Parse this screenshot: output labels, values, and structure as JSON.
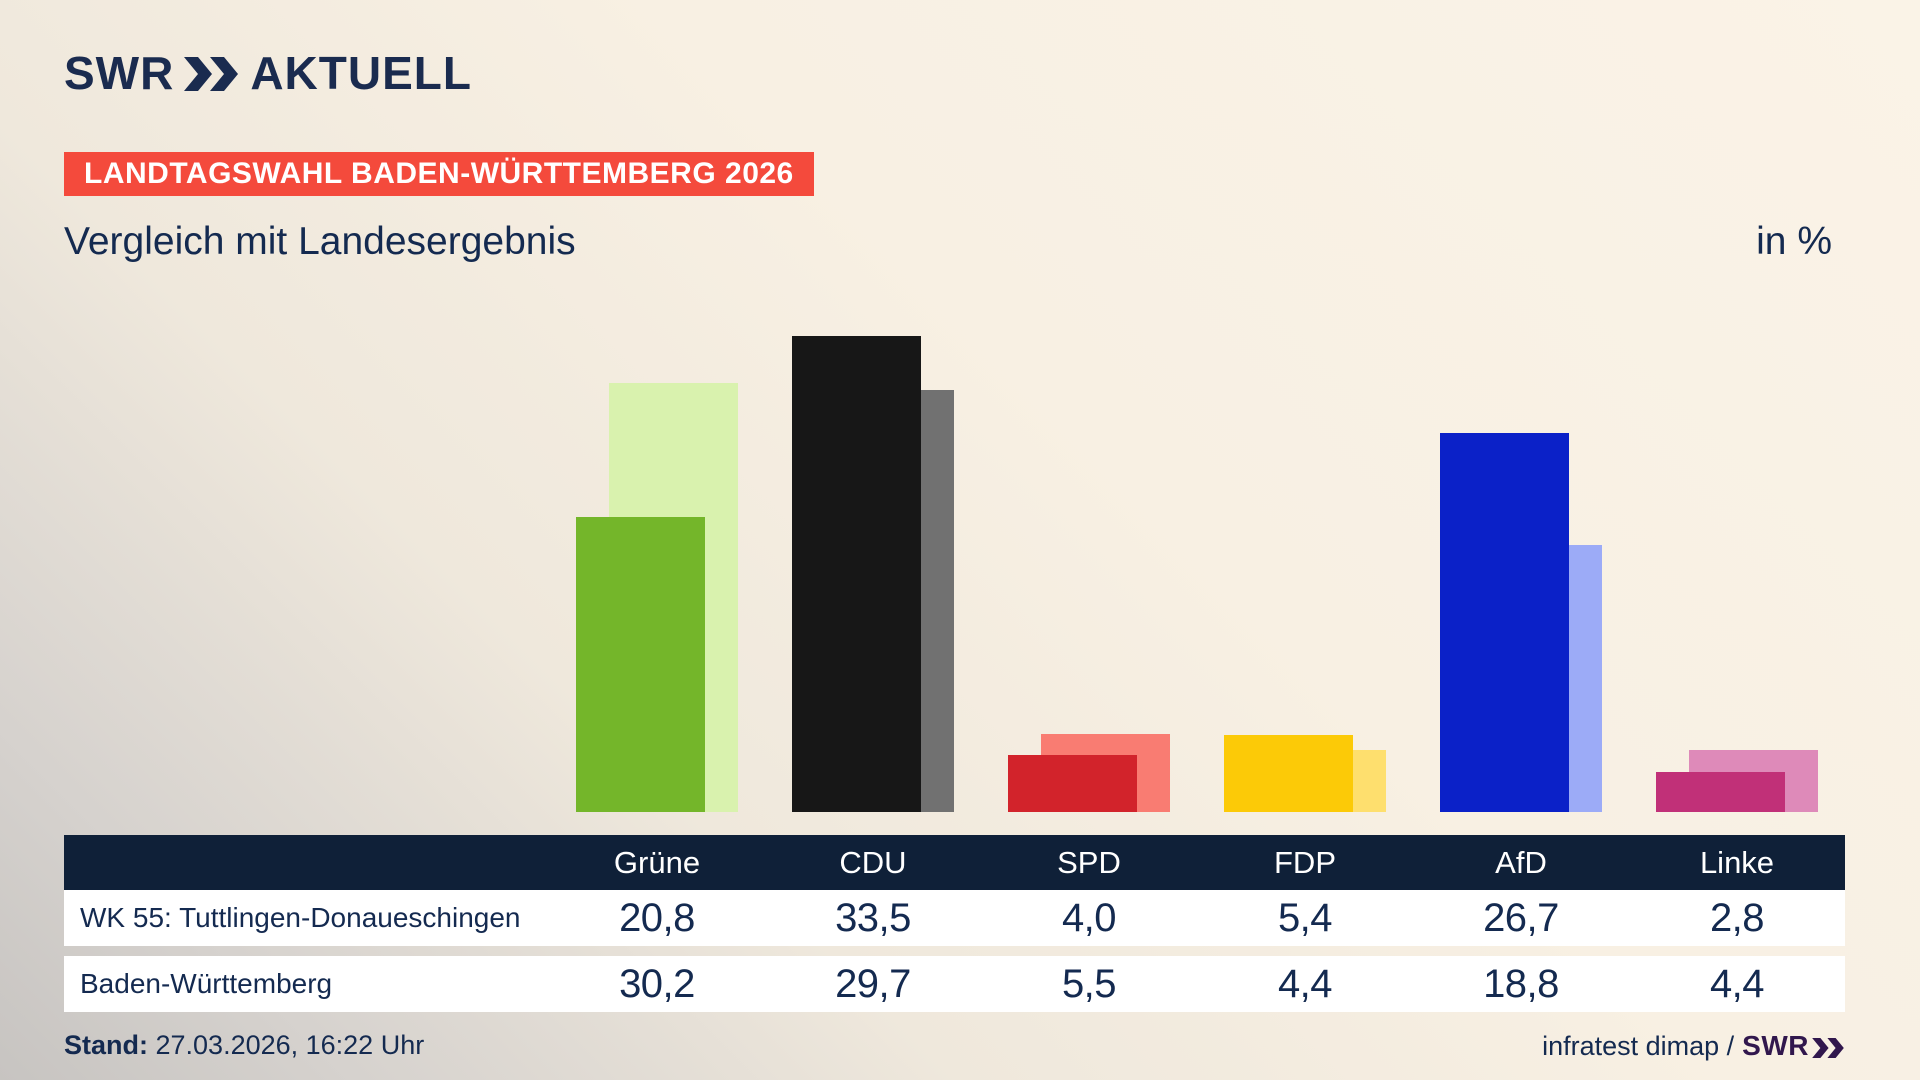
{
  "logo": {
    "swr": "SWR",
    "suffix": "AKTUELL",
    "chevron_icon": "double-chevron-right"
  },
  "badge": {
    "label": "LANDTAGSWAHL BADEN-WÜRTTEMBERG 2026",
    "bg_color": "#f44a3c"
  },
  "header": {
    "title": "Vergleich mit Landesergebnis",
    "unit": "in %"
  },
  "chart_data": {
    "type": "bar",
    "categories": [
      "Grüne",
      "CDU",
      "SPD",
      "FDP",
      "AfD",
      "Linke"
    ],
    "series": [
      {
        "name": "WK 55: Tuttlingen-Donaueschingen",
        "role": "constituency-front-bars",
        "values": [
          20.8,
          33.5,
          4.0,
          5.4,
          26.7,
          2.8
        ],
        "colors": [
          "#74b62a",
          "#171717",
          "#d2232b",
          "#fcca07",
          "#0b21c8",
          "#c13078"
        ]
      },
      {
        "name": "Baden-Württemberg",
        "role": "state-back-bars",
        "values": [
          30.2,
          29.7,
          5.5,
          4.4,
          18.8,
          4.4
        ],
        "colors": [
          "#d9f2ae",
          "#717171",
          "#f97c72",
          "#fedf6e",
          "#9cabf7",
          "#de8ab9"
        ]
      }
    ],
    "unit": "%",
    "ylim": [
      0,
      35
    ],
    "grid": false,
    "legend": "none",
    "title": "Vergleich mit Landesergebnis",
    "value_format": "comma-decimal"
  },
  "table": {
    "columns": [
      "Grüne",
      "CDU",
      "SPD",
      "FDP",
      "AfD",
      "Linke"
    ],
    "rows": [
      {
        "label": "WK 55: Tuttlingen-Donaueschingen",
        "values": [
          "20,8",
          "33,5",
          "4,0",
          "5,4",
          "26,7",
          "2,8"
        ]
      },
      {
        "label": "Baden-Württemberg",
        "values": [
          "30,2",
          "29,7",
          "5,5",
          "4,4",
          "18,8",
          "4,4"
        ]
      }
    ]
  },
  "footer": {
    "stand_label": "Stand:",
    "stand_value": " 27.03.2026, 16:22 Uhr",
    "source_text": "infratest dimap /",
    "source_brand": "SWR"
  },
  "colors": {
    "background_cream": "#f8f0e3",
    "background_gray": "#c7c4c1",
    "header_navy": "#0f2038",
    "text_navy": "#142a50",
    "badge_red": "#f44a3c",
    "logo_navy": "#1a2b4f",
    "swr_brand_violet": "#31174d",
    "row_white": "#ffffff"
  }
}
